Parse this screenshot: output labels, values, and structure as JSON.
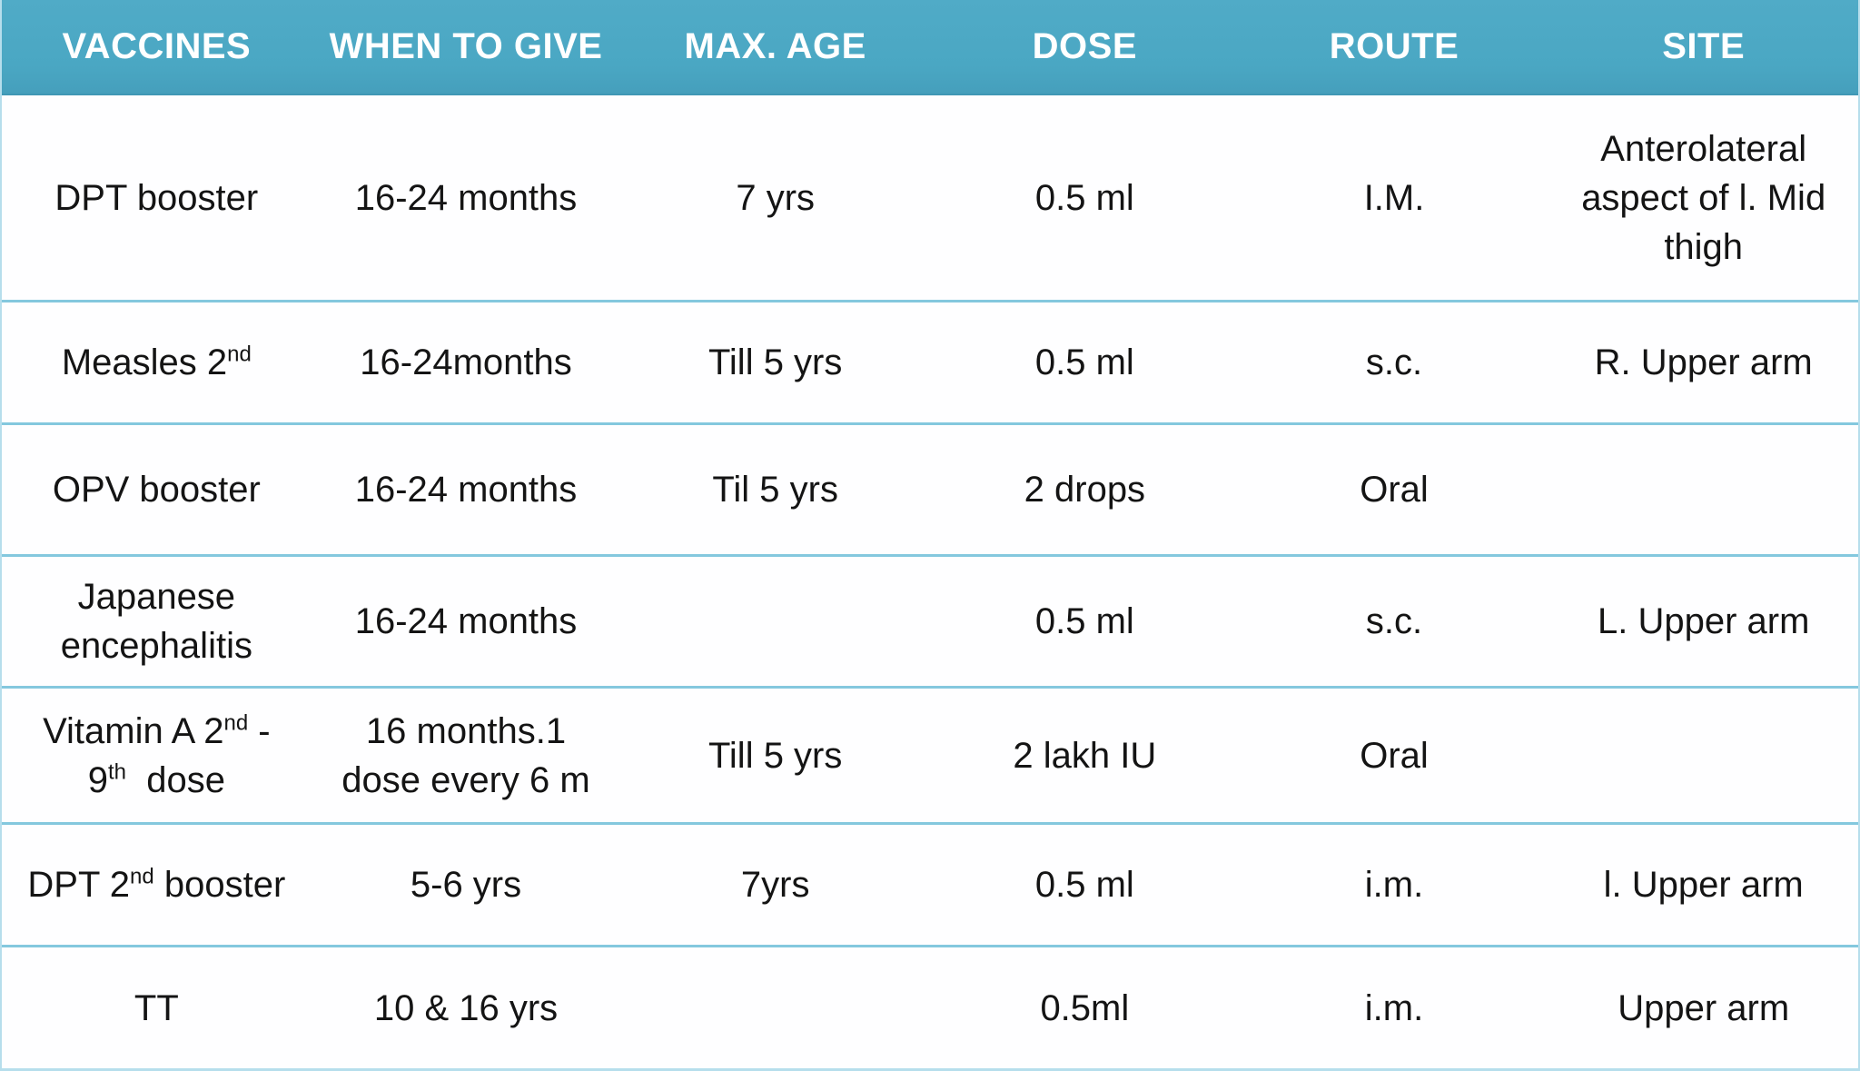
{
  "chart_data": {
    "type": "table",
    "title": "Vaccination schedule table",
    "columns": [
      "VACCINES",
      "WHEN TO GIVE",
      "MAX. AGE",
      "DOSE",
      "ROUTE",
      "SITE"
    ],
    "rows": [
      [
        "DPT booster",
        "16-24 months",
        "7 yrs",
        "0.5 ml",
        "I.M.",
        "Anterolateral\naspect of l. Mid\nthigh"
      ],
      [
        "Measles 2nd",
        "16-24months",
        "Till 5 yrs",
        "0.5 ml",
        "s.c.",
        "R. Upper arm"
      ],
      [
        "OPV booster",
        "16-24 months",
        "Til 5 yrs",
        "2 drops",
        "Oral",
        ""
      ],
      [
        "Japanese\nencephalitis",
        "16-24 months",
        "",
        "0.5 ml",
        "s.c.",
        "L. Upper arm"
      ],
      [
        "Vitamin A 2nd -\n9th  dose",
        "16 months.1\ndose every 6 m",
        "Till 5 yrs",
        "2 lakh IU",
        "Oral",
        ""
      ],
      [
        "DPT 2nd booster",
        "5-6 yrs",
        "7yrs",
        "0.5 ml",
        "i.m.",
        "l. Upper arm"
      ],
      [
        "TT",
        "10 & 16 yrs",
        "",
        "0.5ml",
        "i.m.",
        "Upper arm"
      ]
    ],
    "layout_hints": {
      "grid": "horizontal row dividers only",
      "header_position": "top",
      "cell_alignment": "center"
    }
  },
  "colors": {
    "header_bg": "#4AA7C3",
    "header_text": "#FFFFFF",
    "divider": "#84C8DE",
    "table_border": "#B6DEEC",
    "cell_text": "#141414"
  }
}
